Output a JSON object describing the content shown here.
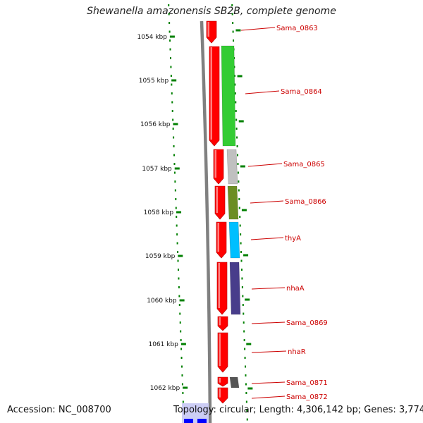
{
  "title": "Shewanella amazonensis SB2B, complete genome",
  "footer": {
    "accession": "Accession: NC_008700",
    "topology": "Topology: circular; Length: 4,306,142 bp; Genes: 3,774"
  },
  "scale": {
    "ticks": [
      "1054 kbp",
      "1055 kbp",
      "1056 kbp",
      "1057 kbp",
      "1058 kbp",
      "1059 kbp",
      "1060 kbp",
      "1061 kbp",
      "1062 kbp"
    ]
  },
  "genes": [
    {
      "label": "Sama_0863",
      "color": "#ff0000"
    },
    {
      "label": "Sama_0864",
      "color": "#33cc33"
    },
    {
      "label": "Sama_0865",
      "color": "#c0c0c0"
    },
    {
      "label": "Sama_0866",
      "color": "#6b8e23"
    },
    {
      "label": "thyA",
      "color": "#00bfff"
    },
    {
      "label": "nhaA",
      "color": "#483d8b"
    },
    {
      "label": "Sama_0869",
      "color": "#ff0000"
    },
    {
      "label": "nhaR",
      "color": "#ff0000"
    },
    {
      "label": "Sama_0871",
      "color": "#555555"
    },
    {
      "label": "Sama_0872",
      "color": "#ff0000"
    }
  ],
  "colors": {
    "cds": "#ff0000",
    "backbone": "#808080",
    "ticks": "#008000",
    "label": "#cc0000",
    "rna": "#0000ff"
  }
}
